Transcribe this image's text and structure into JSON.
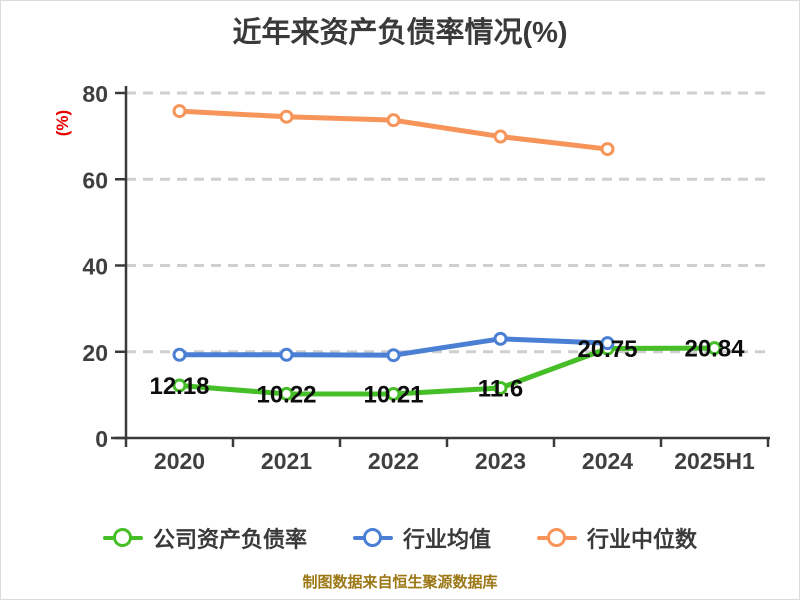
{
  "title": "近年来资产负债率情况(%)",
  "footer": "制图数据来自恒生聚源数据库",
  "colors": {
    "title": "#3a3a3a",
    "axis": "#3a3a3a",
    "grid": "#cfcfcf",
    "ylabel": "#e60000",
    "footer": "#9c7716",
    "data_label": "#0d0d0d",
    "company": "#46be28",
    "industry_mean": "#4a7fd4",
    "industry_median": "#f7945a"
  },
  "chart_data": {
    "type": "line",
    "title": "近年来资产负债率情况(%)",
    "xlabel": "",
    "ylabel": "(%)",
    "categories": [
      "2020",
      "2021",
      "2022",
      "2023",
      "2024",
      "2025H1"
    ],
    "y_ticks": [
      0,
      20,
      40,
      60,
      80
    ],
    "ylim": [
      0,
      81.6
    ],
    "grid": "horizontal dashed at 20/40/60/80",
    "legend_position": "bottom",
    "marker_style": "white-filled circles with colored ring",
    "series": [
      {
        "name": "公司资产负债率",
        "color": "#46be28",
        "values": [
          12.18,
          10.22,
          10.21,
          11.6,
          20.75,
          20.84
        ],
        "labels": [
          "12.18",
          "10.22",
          "10.21",
          "11.6",
          "20.75",
          "20.84"
        ]
      },
      {
        "name": "行业均值",
        "color": "#4a7fd4",
        "values": [
          19.3,
          19.3,
          19.2,
          23.0,
          22.0,
          null
        ],
        "labels": null
      },
      {
        "name": "行业中位数",
        "color": "#f7945a",
        "values": [
          75.8,
          74.5,
          73.7,
          69.9,
          67.0,
          null
        ],
        "labels": null
      }
    ]
  }
}
